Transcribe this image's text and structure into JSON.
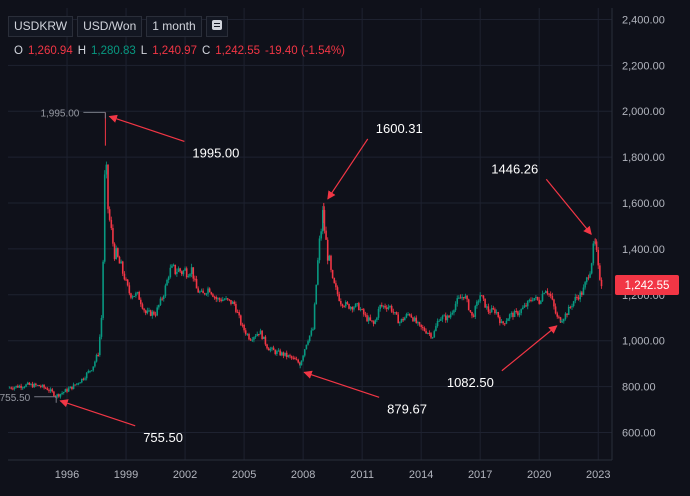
{
  "header": {
    "symbol": "USDKRW",
    "pair": "USD/Won",
    "interval": "1 month",
    "ohlc": {
      "o_label": "O",
      "o": "1,260.94",
      "h_label": "H",
      "h": "1,280.83",
      "l_label": "L",
      "l": "1,240.97",
      "c_label": "C",
      "c": "1,242.55",
      "change": "-19.40 (-1.54%)"
    }
  },
  "icons": {
    "menu": "menu-icon"
  },
  "colors": {
    "bg": "#0f111a",
    "up": "#089981",
    "down": "#f23645",
    "grid": "#1e2230",
    "axisText": "#b2b5be",
    "annot": "#ffffff",
    "arrow": "#f23645",
    "priceTag": "#f23645"
  },
  "chart_data": {
    "type": "candlestick",
    "title": "",
    "xlabel": "",
    "ylabel": "",
    "xlim": [
      1993.0,
      2023.7
    ],
    "ylim": [
      480,
      2450
    ],
    "grid": true,
    "y_ticks": [
      "600.00",
      "800.00",
      "1,000.00",
      "1,200.00",
      "1,400.00",
      "1,600.00",
      "1,800.00",
      "2,000.00",
      "2,200.00",
      "2,400.00"
    ],
    "y_tick_values": [
      600,
      800,
      1000,
      1200,
      1400,
      1600,
      1800,
      2000,
      2200,
      2400
    ],
    "x_ticks": [
      "1996",
      "1999",
      "2002",
      "2005",
      "2008",
      "2011",
      "2014",
      "2017",
      "2020",
      "2023"
    ],
    "x_tick_values": [
      1996,
      1999,
      2002,
      2005,
      2008,
      2011,
      2014,
      2017,
      2020,
      2023
    ],
    "last_price": {
      "label": "1,242.55",
      "value": 1242.55
    },
    "range_markers": [
      {
        "label": "1,995.00",
        "x": 1997.95,
        "y": 1995
      },
      {
        "label": "755.50",
        "x": 1995.45,
        "y": 755.5
      }
    ],
    "annotations": [
      {
        "text": "1995.00",
        "x": 1997.95,
        "y": 1995,
        "direction": "from-bottom-right"
      },
      {
        "text": "755.50",
        "x": 1995.45,
        "y": 755.5,
        "direction": "from-bottom-right"
      },
      {
        "text": "1600.31",
        "x": 2009.05,
        "y": 1600.31,
        "direction": "from-top-right"
      },
      {
        "text": "879.67",
        "x": 2007.85,
        "y": 879.67,
        "direction": "from-bottom-right"
      },
      {
        "text": "1446.26",
        "x": 2022.85,
        "y": 1446.26,
        "direction": "from-top-left"
      },
      {
        "text": "1082.50",
        "x": 2021.1,
        "y": 1082.5,
        "direction": "from-bottom-left"
      }
    ],
    "series": [
      {
        "values": [
          [
            1993.0,
            795
          ],
          [
            1994.0,
            807
          ],
          [
            1994.6,
            803
          ],
          [
            1995.0,
            790
          ],
          [
            1995.45,
            760
          ],
          [
            1995.8,
            775
          ],
          [
            1996.3,
            800
          ],
          [
            1996.8,
            835
          ],
          [
            1997.3,
            885
          ],
          [
            1997.6,
            950
          ],
          [
            1997.75,
            1100
          ],
          [
            1997.85,
            1400
          ],
          [
            1997.95,
            1850
          ],
          [
            1998.05,
            1600
          ],
          [
            1998.2,
            1500
          ],
          [
            1998.4,
            1390
          ],
          [
            1998.6,
            1350
          ],
          [
            1998.9,
            1280
          ],
          [
            1999.2,
            1200
          ],
          [
            1999.6,
            1200
          ],
          [
            2000.0,
            1120
          ],
          [
            2000.5,
            1120
          ],
          [
            2000.9,
            1200
          ],
          [
            2001.2,
            1300
          ],
          [
            2001.6,
            1310
          ],
          [
            2001.9,
            1300
          ],
          [
            2002.3,
            1320
          ],
          [
            2002.6,
            1220
          ],
          [
            2002.9,
            1200
          ],
          [
            2003.2,
            1230
          ],
          [
            2003.6,
            1180
          ],
          [
            2004.0,
            1180
          ],
          [
            2004.5,
            1160
          ],
          [
            2004.9,
            1060
          ],
          [
            2005.3,
            1010
          ],
          [
            2005.8,
            1040
          ],
          [
            2006.2,
            970
          ],
          [
            2006.6,
            950
          ],
          [
            2007.0,
            940
          ],
          [
            2007.4,
            925
          ],
          [
            2007.85,
            900
          ],
          [
            2008.2,
            1000
          ],
          [
            2008.5,
            1050
          ],
          [
            2008.8,
            1400
          ],
          [
            2009.0,
            1550
          ],
          [
            2009.2,
            1400
          ],
          [
            2009.5,
            1260
          ],
          [
            2009.9,
            1170
          ],
          [
            2010.3,
            1150
          ],
          [
            2010.8,
            1150
          ],
          [
            2011.2,
            1100
          ],
          [
            2011.6,
            1070
          ],
          [
            2011.9,
            1150
          ],
          [
            2012.4,
            1150
          ],
          [
            2012.9,
            1080
          ],
          [
            2013.4,
            1120
          ],
          [
            2013.9,
            1060
          ],
          [
            2014.3,
            1040
          ],
          [
            2014.6,
            1020
          ],
          [
            2014.9,
            1100
          ],
          [
            2015.4,
            1100
          ],
          [
            2015.8,
            1170
          ],
          [
            2016.2,
            1200
          ],
          [
            2016.6,
            1100
          ],
          [
            2017.0,
            1200
          ],
          [
            2017.4,
            1130
          ],
          [
            2017.8,
            1130
          ],
          [
            2018.1,
            1070
          ],
          [
            2018.5,
            1110
          ],
          [
            2018.9,
            1120
          ],
          [
            2019.3,
            1150
          ],
          [
            2019.7,
            1190
          ],
          [
            2020.0,
            1170
          ],
          [
            2020.3,
            1230
          ],
          [
            2020.6,
            1190
          ],
          [
            2020.9,
            1100
          ],
          [
            2021.1,
            1090
          ],
          [
            2021.4,
            1120
          ],
          [
            2021.8,
            1180
          ],
          [
            2022.2,
            1210
          ],
          [
            2022.5,
            1290
          ],
          [
            2022.75,
            1390
          ],
          [
            2022.85,
            1420
          ],
          [
            2023.0,
            1300
          ],
          [
            2023.2,
            1240
          ]
        ]
      }
    ]
  }
}
